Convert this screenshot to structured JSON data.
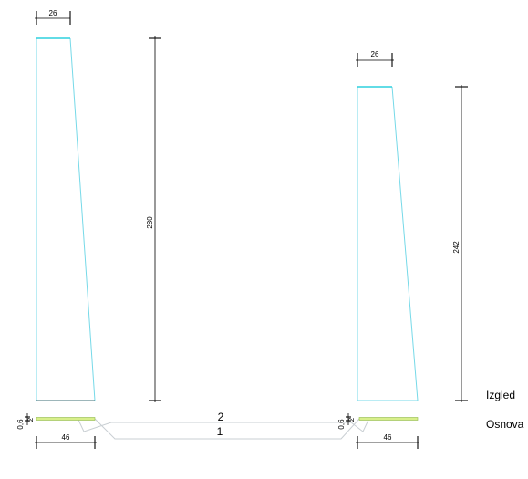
{
  "dimensions": {
    "left_top_width": "26",
    "left_height": "280",
    "right_top_width": "26",
    "right_height": "242",
    "left_base_width": "46",
    "right_base_width": "46",
    "left_slab_thickness": "0,6",
    "left_slab_offset": "2",
    "right_slab_thickness": "0,6",
    "right_slab_offset": "2"
  },
  "labels": {
    "elevation": "Izgled",
    "plan": "Osnova",
    "upper_path": "2",
    "lower_path": "1"
  },
  "colors": {
    "wall_outline": "#76d9e8",
    "wall_top": "#2fd0de",
    "plan_outline": "#c9cfd3",
    "slab_fill": "#d8ef8a",
    "dimension_line": "#000000"
  }
}
